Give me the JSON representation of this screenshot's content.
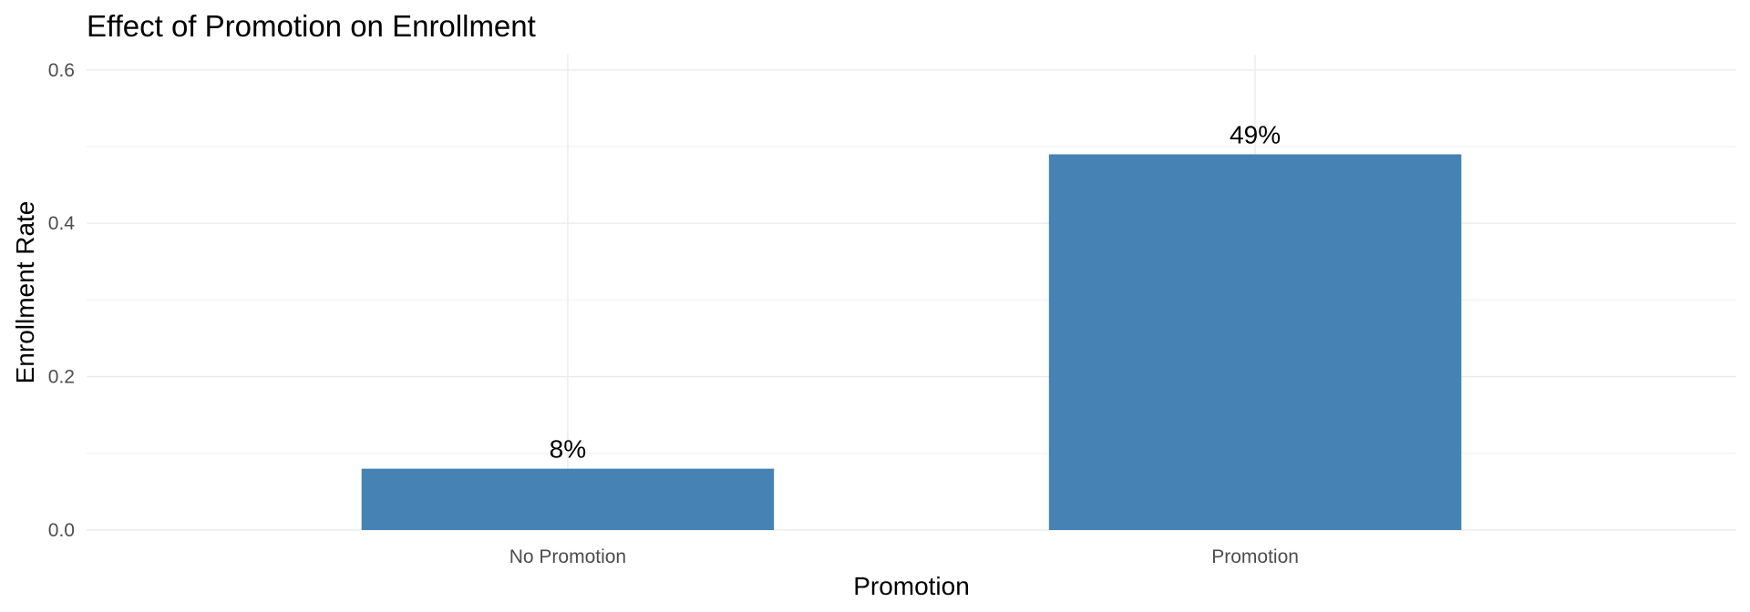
{
  "chart_data": {
    "type": "bar",
    "title": "Effect of Promotion on Enrollment",
    "xlabel": "Promotion",
    "ylabel": "Enrollment Rate",
    "categories": [
      "No Promotion",
      "Promotion"
    ],
    "values": [
      0.08,
      0.49
    ],
    "data_labels": [
      "8%",
      "49%"
    ],
    "ylim": [
      0,
      0.62
    ],
    "yticks": [
      0.0,
      0.2,
      0.4,
      0.6
    ],
    "ytick_labels": [
      "0.0",
      "0.2",
      "0.4",
      "0.6"
    ],
    "grid": true,
    "legend": "none",
    "colors": {
      "bar": "#4682b4"
    }
  }
}
